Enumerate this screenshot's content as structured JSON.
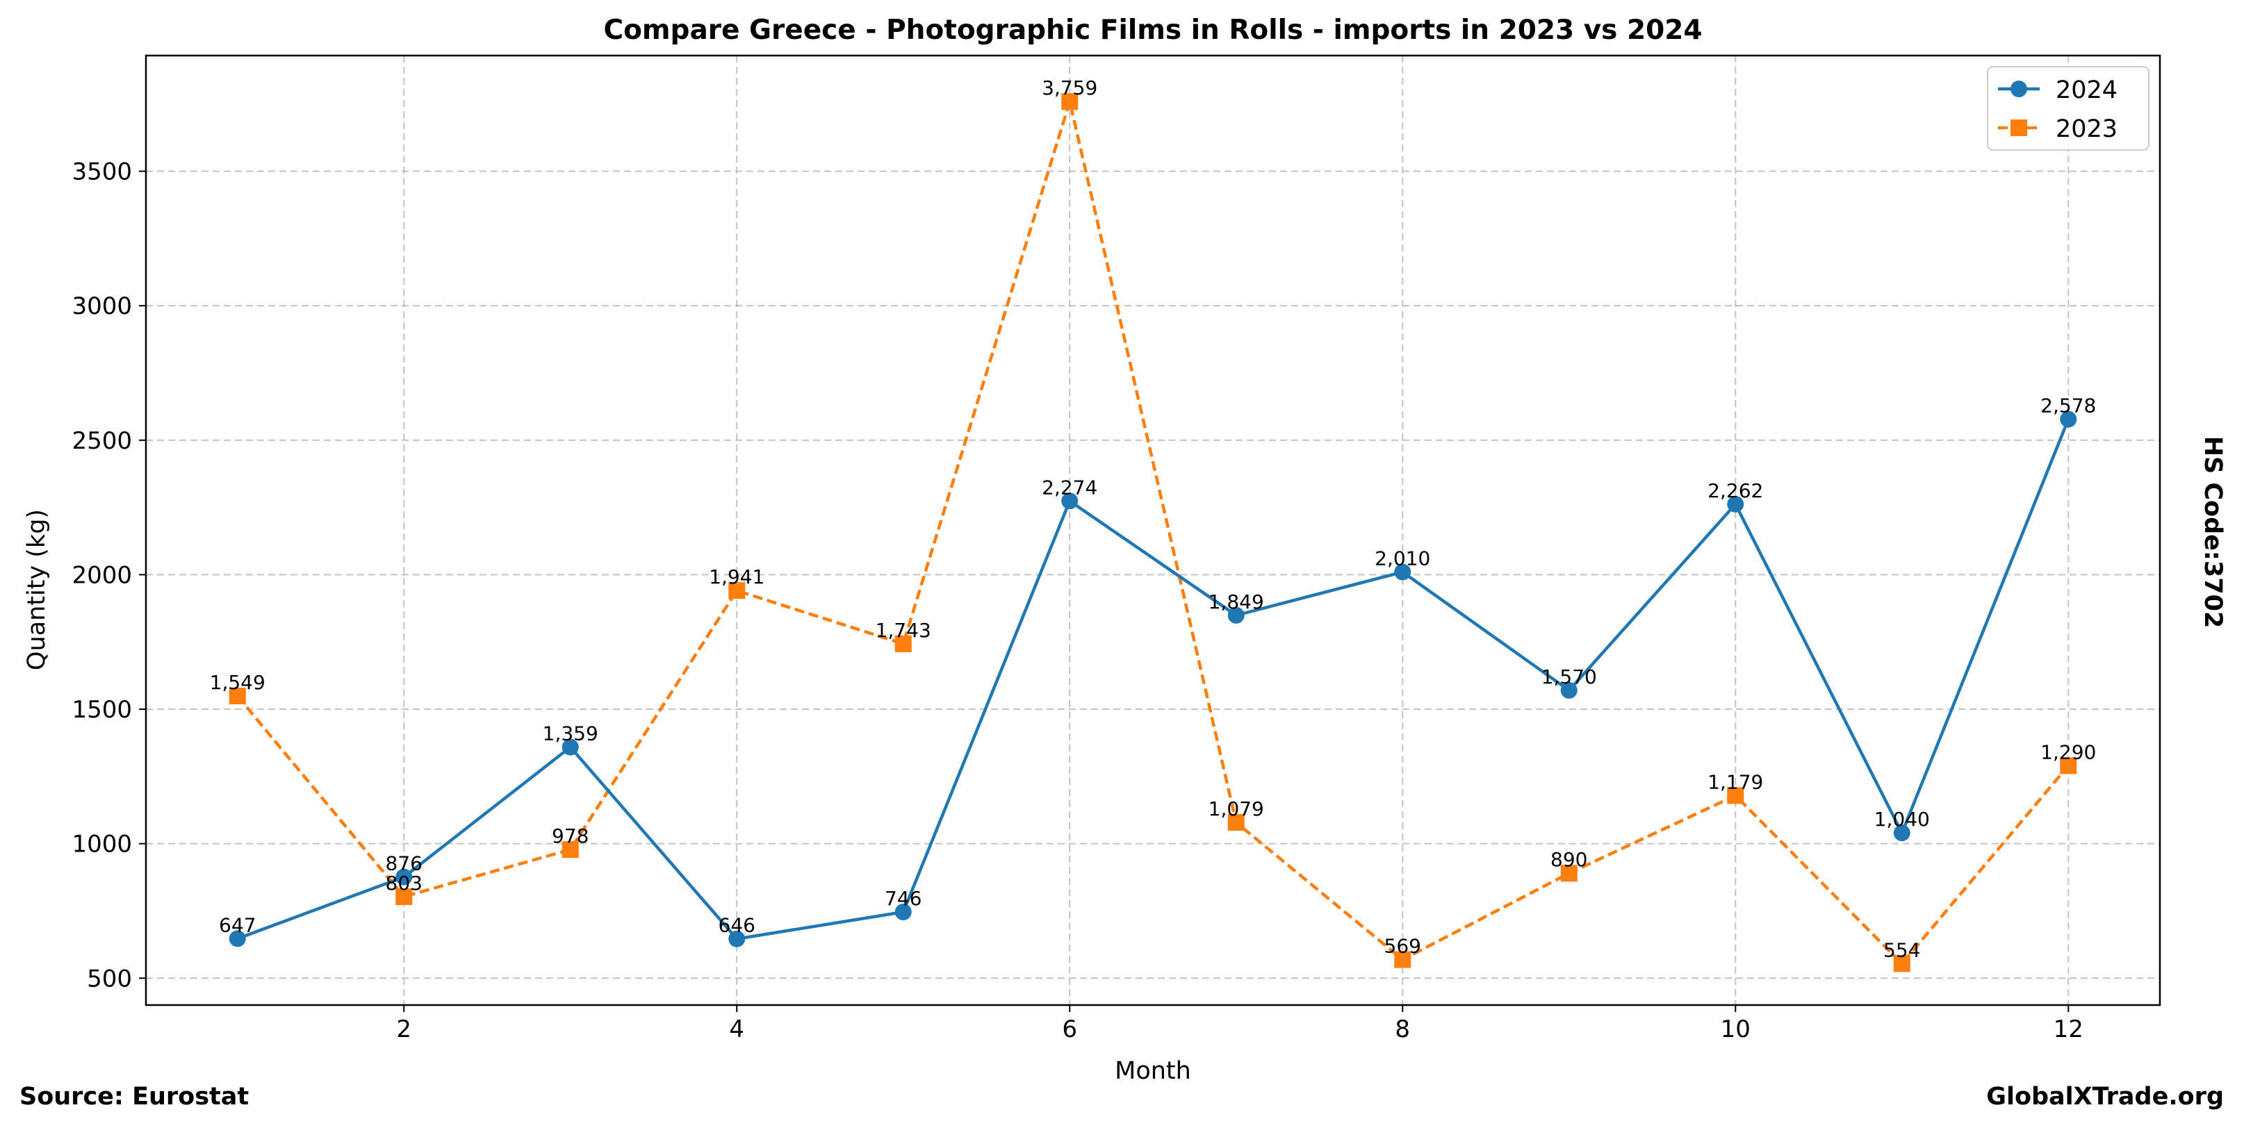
{
  "chart_data": {
    "type": "line",
    "title": "Compare Greece - Photographic Films in Rolls - imports in 2023 vs 2024",
    "xlabel": "Month",
    "ylabel": "Quantity (kg)",
    "x": [
      1,
      2,
      3,
      4,
      5,
      6,
      7,
      8,
      9,
      10,
      11,
      12
    ],
    "xlim": [
      0.45,
      12.55
    ],
    "ylim": [
      400,
      3930
    ],
    "x_ticks": [
      2,
      4,
      6,
      8,
      10,
      12
    ],
    "y_ticks": [
      500,
      1000,
      1500,
      2000,
      2500,
      3000,
      3500
    ],
    "grid": true,
    "legend_position": "top-right",
    "series": [
      {
        "name": "2024",
        "color": "#1f77b4",
        "line_style": "solid",
        "marker": "circle",
        "values": [
          647,
          876,
          1359,
          646,
          746,
          2274,
          1849,
          2010,
          1570,
          2262,
          1040,
          2578
        ],
        "labels": [
          "647",
          "876",
          "1,359",
          "646",
          "746",
          "2,274",
          "1,849",
          "2,010",
          "1,570",
          "2,262",
          "1,040",
          "2,578"
        ]
      },
      {
        "name": "2023",
        "color": "#ff7f0e",
        "line_style": "dashed",
        "marker": "square",
        "values": [
          1549,
          803,
          978,
          1941,
          1743,
          3759,
          1079,
          569,
          890,
          1179,
          554,
          1290
        ],
        "labels": [
          "1,549",
          "803",
          "978",
          "1,941",
          "1,743",
          "3,759",
          "1,079",
          "569",
          "890",
          "1,179",
          "554",
          "1,290"
        ]
      }
    ]
  },
  "side_label": "HS Code:3702",
  "source_text": "Source: Eurostat",
  "brand_text": "GlobalXTrade.org"
}
